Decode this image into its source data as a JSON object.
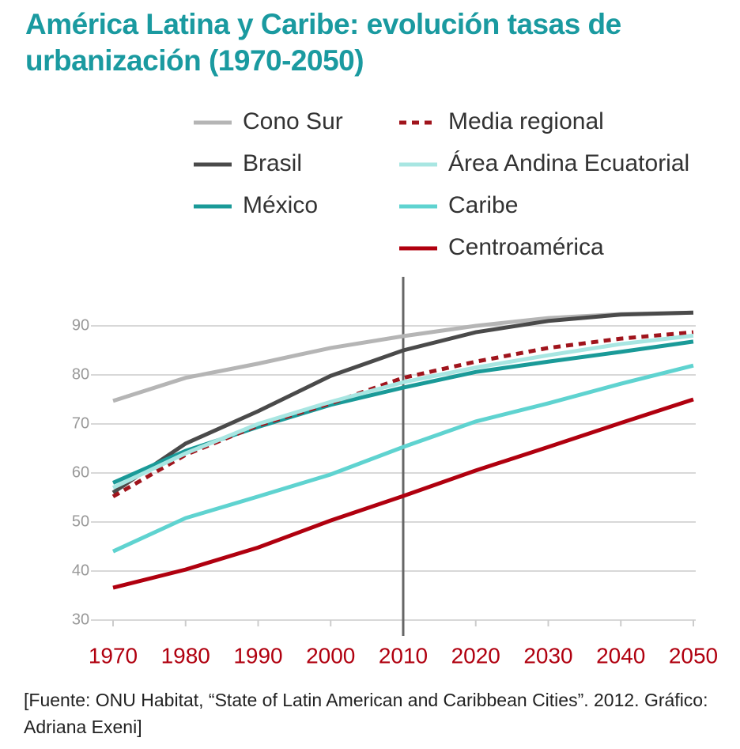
{
  "chart_data": {
    "type": "line",
    "title": "América Latina y Caribe: evolución tasas de urbanización (1970-2050)",
    "x": [
      1970,
      1980,
      1990,
      2000,
      2010,
      2020,
      2030,
      2040,
      2050
    ],
    "xlim": [
      1970,
      2050
    ],
    "xticks": [
      1970,
      1980,
      1990,
      2000,
      2010,
      2020,
      2030,
      2040,
      2050
    ],
    "ylim": [
      30,
      100
    ],
    "yticks": [
      30,
      40,
      50,
      60,
      70,
      80,
      90
    ],
    "grid": true,
    "series": [
      {
        "name": "Cono Sur",
        "color": "#b5b5b5",
        "values": [
          74.7,
          79.4,
          82.3,
          85.5,
          87.9,
          90,
          91.6,
          92.4,
          92.7
        ]
      },
      {
        "name": "Brasil",
        "color": "#4a4a4a",
        "values": [
          56,
          66,
          72.6,
          79.8,
          85,
          88.7,
          91,
          92.3,
          92.7
        ]
      },
      {
        "name": "México",
        "color": "#1a9a98",
        "values": [
          58,
          64.5,
          69.4,
          73.9,
          77.4,
          80.6,
          82.7,
          84.7,
          86.8
        ]
      },
      {
        "name": "Media regional",
        "color": "#a0141c",
        "style": "dotted",
        "values": [
          55.2,
          63.7,
          69.7,
          74.2,
          79.4,
          82.7,
          85.5,
          87.4,
          88.7
        ]
      },
      {
        "name": "Área Andina Ecuatorial",
        "color": "#a8e6e2",
        "values": [
          57,
          64,
          70,
          74.5,
          78.5,
          81.5,
          84,
          86.3,
          88
        ]
      },
      {
        "name": "Caribe",
        "color": "#5fd3d0",
        "values": [
          44,
          50.8,
          55.2,
          59.7,
          65.3,
          70.5,
          74.2,
          78.2,
          81.9
        ]
      },
      {
        "name": "Centroamérica",
        "color": "#b0000f",
        "values": [
          36.6,
          40.3,
          44.8,
          50.3,
          55.3,
          60.5,
          65.3,
          70.2,
          75
        ]
      }
    ],
    "source": "[Fuente: ONU Habitat, “State of Latin American and Caribbean Cities”. 2012. Gráfico: Adriana Exeni]"
  }
}
